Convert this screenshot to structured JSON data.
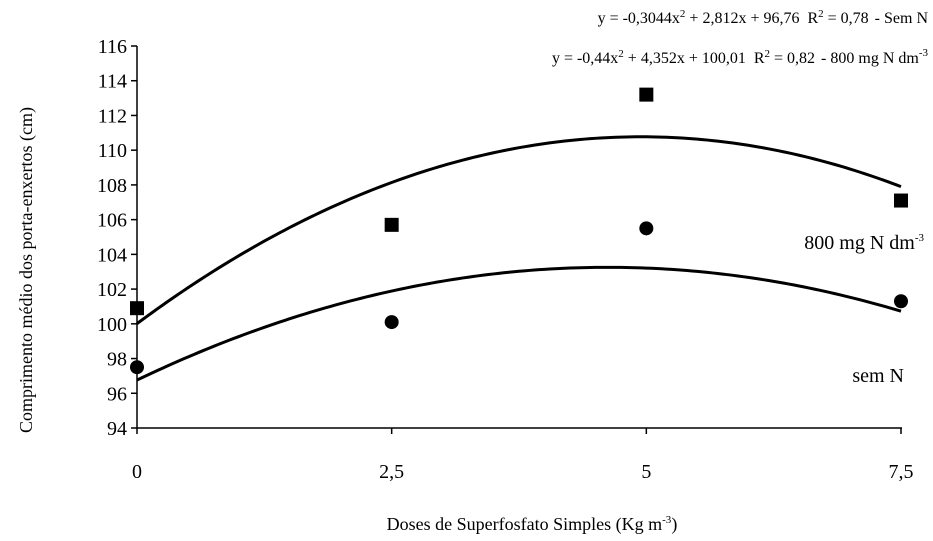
{
  "chart_data": {
    "type": "scatter",
    "x": [
      0,
      2.5,
      5,
      7.5
    ],
    "xticks": [
      "0",
      "2,5",
      "5",
      "7,5"
    ],
    "xlim": [
      0,
      7.5
    ],
    "ylim": [
      94,
      116
    ],
    "yticks": [
      94,
      96,
      98,
      100,
      102,
      104,
      106,
      108,
      110,
      112,
      114,
      116
    ],
    "xlabel": {
      "text": "Doses de Superfosfato Simples (Kg m",
      "sup": "-3",
      "suffix": ")"
    },
    "ylabel": "Comprimento médio dos porta-enxertos (cm)",
    "grid": false,
    "series": [
      {
        "label": "800 mg N dm",
        "label_sup": "-3",
        "marker": "square",
        "values": [
          100.9,
          105.7,
          113.2,
          107.1
        ],
        "fit": {
          "a": -0.44,
          "b": 4.352,
          "c": 100.01
        },
        "equation": {
          "lhs": "y = -0,44x",
          "sq": "2",
          "rest": " + 4,352x + 100,01",
          "r2_label": "R",
          "r2_sup": "2",
          "r2_value": " = 0,82",
          "tag": "800 mg N dm",
          "tag_sup": "-3"
        }
      },
      {
        "label": "sem N",
        "label_sup": "",
        "marker": "circle",
        "values": [
          97.5,
          100.1,
          105.5,
          101.3
        ],
        "fit": {
          "a": -0.3044,
          "b": 2.812,
          "c": 96.76
        },
        "equation": {
          "lhs": "y = -0,3044x",
          "sq": "2",
          "rest": " + 2,812x + 96,76",
          "r2_label": "R",
          "r2_sup": "2",
          "r2_value": " = 0,78",
          "tag": "Sem N",
          "tag_sup": ""
        }
      }
    ]
  }
}
